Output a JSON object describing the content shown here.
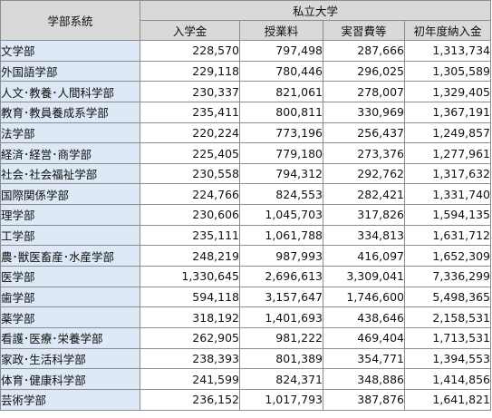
{
  "header": {
    "category": "学部系統",
    "group": "私立大学",
    "columns": [
      "入学金",
      "授業料",
      "実習費等",
      "初年度納入金"
    ]
  },
  "rows": [
    {
      "dept": "文学部",
      "values": [
        "228,570",
        "797,498",
        "287,666",
        "1,313,734"
      ]
    },
    {
      "dept": "外国語学部",
      "values": [
        "229,118",
        "780,446",
        "296,025",
        "1,305,589"
      ]
    },
    {
      "dept": "人文･教養･人間科学部",
      "values": [
        "230,337",
        "821,061",
        "278,007",
        "1,329,405"
      ]
    },
    {
      "dept": "教育･教員養成系学部",
      "values": [
        "235,411",
        "800,811",
        "330,969",
        "1,367,191"
      ]
    },
    {
      "dept": "法学部",
      "values": [
        "220,224",
        "773,196",
        "256,437",
        "1,249,857"
      ]
    },
    {
      "dept": "経済･経営･商学部",
      "values": [
        "225,405",
        "779,180",
        "273,376",
        "1,277,961"
      ]
    },
    {
      "dept": "社会･社会福祉学部",
      "values": [
        "230,558",
        "794,312",
        "292,762",
        "1,317,632"
      ]
    },
    {
      "dept": "国際関係学部",
      "values": [
        "224,766",
        "824,553",
        "282,421",
        "1,331,740"
      ]
    },
    {
      "dept": "理学部",
      "values": [
        "230,606",
        "1,045,703",
        "317,826",
        "1,594,135"
      ]
    },
    {
      "dept": "工学部",
      "values": [
        "235,111",
        "1,061,788",
        "334,813",
        "1,631,712"
      ]
    },
    {
      "dept": "農･獣医畜産･水産学部",
      "values": [
        "248,219",
        "987,993",
        "416,097",
        "1,652,309"
      ]
    },
    {
      "dept": "医学部",
      "values": [
        "1,330,645",
        "2,696,613",
        "3,309,041",
        "7,336,299"
      ]
    },
    {
      "dept": "歯学部",
      "values": [
        "594,118",
        "3,157,647",
        "1,746,600",
        "5,498,365"
      ]
    },
    {
      "dept": "薬学部",
      "values": [
        "318,192",
        "1,401,693",
        "438,646",
        "2,158,531"
      ]
    },
    {
      "dept": "看護･医療･栄養学部",
      "values": [
        "262,905",
        "981,222",
        "469,404",
        "1,713,531"
      ]
    },
    {
      "dept": "家政･生活科学部",
      "values": [
        "238,393",
        "801,389",
        "354,771",
        "1,394,553"
      ]
    },
    {
      "dept": "体育･健康科学部",
      "values": [
        "241,599",
        "824,371",
        "348,886",
        "1,414,856"
      ]
    },
    {
      "dept": "芸術学部",
      "values": [
        "236,152",
        "1,017,793",
        "387,876",
        "1,641,821"
      ]
    }
  ]
}
